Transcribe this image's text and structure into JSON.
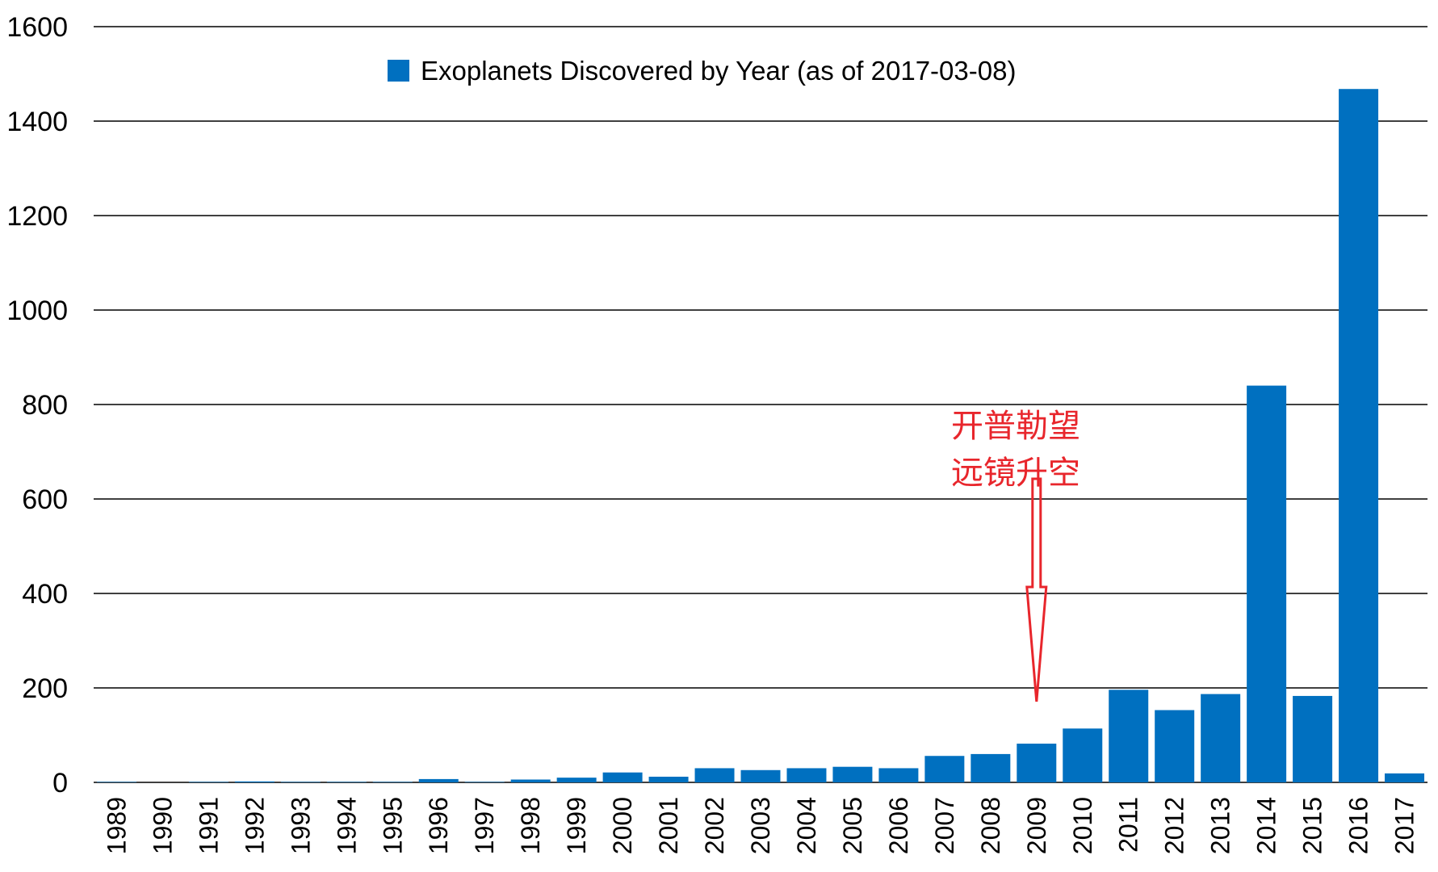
{
  "chart_data": {
    "type": "bar",
    "title": "",
    "xlabel": "",
    "ylabel": "",
    "ylim": [
      0,
      1600
    ],
    "yticks": [
      0,
      200,
      400,
      600,
      800,
      1000,
      1200,
      1400,
      1600
    ],
    "grid": "horizontal",
    "legend": {
      "position": "top-center"
    },
    "colors": {
      "bar": "#0070c0",
      "annotation": "#e8262c",
      "grid": "#000000"
    },
    "categories": [
      "1989",
      "1990",
      "1991",
      "1992",
      "1993",
      "1994",
      "1995",
      "1996",
      "1997",
      "1998",
      "1999",
      "2000",
      "2001",
      "2002",
      "2003",
      "2004",
      "2005",
      "2006",
      "2007",
      "2008",
      "2009",
      "2010",
      "2011",
      "2012",
      "2013",
      "2014",
      "2015",
      "2016",
      "2017"
    ],
    "series": [
      {
        "name": "Exoplanets Discovered by Year (as of 2017-03-08)",
        "values": [
          1,
          0,
          1,
          2,
          1,
          1,
          1,
          7,
          1,
          6,
          10,
          21,
          12,
          30,
          26,
          30,
          33,
          30,
          56,
          60,
          82,
          114,
          196,
          153,
          187,
          840,
          183,
          1468,
          19
        ]
      }
    ],
    "annotations": [
      {
        "text_lines": [
          "开普勒望",
          "远镜升空"
        ],
        "x": "2009",
        "y": 188,
        "type": "arrow-down"
      }
    ]
  }
}
